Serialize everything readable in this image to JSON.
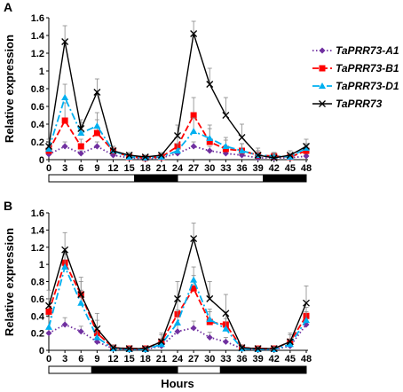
{
  "chart_data": [
    {
      "panel": "A",
      "type": "line",
      "ylabel": "Relative expression",
      "xlabel": "",
      "x": [
        0,
        3,
        6,
        9,
        12,
        15,
        18,
        21,
        24,
        27,
        30,
        33,
        36,
        39,
        42,
        45,
        48
      ],
      "ylim": [
        0,
        1.6
      ],
      "yticks": [
        "0",
        "0.2",
        "0.4",
        "0.6",
        "0.8",
        "1",
        "1.2",
        "1.4",
        "1.6"
      ],
      "xticks": [
        "0",
        "3",
        "6",
        "9",
        "12",
        "15",
        "18",
        "21",
        "24",
        "27",
        "30",
        "33",
        "36",
        "39",
        "42",
        "45",
        "48"
      ],
      "light_bar": [
        {
          "start": 0,
          "end": 16,
          "state": "light"
        },
        {
          "start": 16,
          "end": 24,
          "state": "dark"
        },
        {
          "start": 24,
          "end": 40,
          "state": "light"
        },
        {
          "start": 40,
          "end": 48,
          "state": "dark"
        }
      ],
      "series": [
        {
          "name": "TaPRR73-A1",
          "color": "#7030a0",
          "marker": "diamond",
          "dash": "dot",
          "values": [
            0.06,
            0.15,
            0.07,
            0.15,
            0.05,
            0.02,
            0.01,
            0.02,
            0.07,
            0.15,
            0.1,
            0.07,
            0.05,
            0.02,
            0.02,
            0.02,
            0.04
          ],
          "errors": [
            0.03,
            0.05,
            0.03,
            0.05,
            0.03,
            0.02,
            0.01,
            0.02,
            0.03,
            0.05,
            0.05,
            0.04,
            0.03,
            0.02,
            0.02,
            0.02,
            0.02
          ]
        },
        {
          "name": "TaPRR73-B1",
          "color": "#ff0000",
          "marker": "square",
          "dash": "dash",
          "values": [
            0.1,
            0.44,
            0.15,
            0.3,
            0.1,
            0.03,
            0.02,
            0.03,
            0.15,
            0.5,
            0.2,
            0.12,
            0.1,
            0.05,
            0.04,
            0.03,
            0.1
          ],
          "errors": [
            0.05,
            0.2,
            0.08,
            0.15,
            0.05,
            0.03,
            0.02,
            0.03,
            0.1,
            0.2,
            0.15,
            0.1,
            0.08,
            0.05,
            0.04,
            0.03,
            0.05
          ]
        },
        {
          "name": "TaPRR73-D1",
          "color": "#00b0f0",
          "marker": "triangle",
          "dash": "dashdot",
          "values": [
            0.12,
            0.7,
            0.3,
            0.38,
            0.1,
            0.03,
            0.02,
            0.03,
            0.1,
            0.32,
            0.24,
            0.15,
            0.1,
            0.05,
            0.04,
            0.03,
            0.13
          ],
          "errors": [
            0.05,
            0.15,
            0.12,
            0.15,
            0.05,
            0.03,
            0.02,
            0.03,
            0.08,
            0.15,
            0.15,
            0.1,
            0.08,
            0.05,
            0.04,
            0.03,
            0.05
          ]
        },
        {
          "name": "TaPRR73",
          "color": "#000000",
          "marker": "x",
          "dash": "solid",
          "values": [
            0.15,
            1.33,
            0.35,
            0.76,
            0.1,
            0.05,
            0.03,
            0.05,
            0.27,
            1.42,
            0.85,
            0.5,
            0.25,
            0.05,
            0.02,
            0.05,
            0.15
          ],
          "errors": [
            0.08,
            0.18,
            0.1,
            0.15,
            0.05,
            0.03,
            0.02,
            0.03,
            0.12,
            0.14,
            0.18,
            0.2,
            0.15,
            0.08,
            0.05,
            0.05,
            0.08
          ]
        }
      ]
    },
    {
      "panel": "B",
      "type": "line",
      "ylabel": "Relative expression",
      "xlabel": "Hours",
      "x": [
        0,
        3,
        6,
        9,
        12,
        15,
        18,
        21,
        24,
        27,
        30,
        33,
        36,
        39,
        42,
        45,
        48
      ],
      "ylim": [
        0,
        1.6
      ],
      "yticks": [
        "0",
        "0.2",
        "0.4",
        "0.6",
        "0.8",
        "1",
        "1.2",
        "1.4",
        "1.6"
      ],
      "xticks": [
        "0",
        "3",
        "6",
        "9",
        "12",
        "15",
        "18",
        "21",
        "24",
        "27",
        "30",
        "33",
        "36",
        "39",
        "42",
        "45",
        "48"
      ],
      "light_bar": [
        {
          "start": 0,
          "end": 8,
          "state": "light"
        },
        {
          "start": 8,
          "end": 24,
          "state": "dark"
        },
        {
          "start": 24,
          "end": 32,
          "state": "light"
        },
        {
          "start": 32,
          "end": 48,
          "state": "dark"
        }
      ],
      "series": [
        {
          "name": "TaPRR73-A1",
          "color": "#7030a0",
          "marker": "diamond",
          "dash": "dot",
          "values": [
            0.2,
            0.3,
            0.22,
            0.1,
            0.02,
            0.01,
            0.01,
            0.05,
            0.22,
            0.26,
            0.15,
            0.1,
            0.02,
            0.01,
            0.01,
            0.05,
            0.3
          ],
          "errors": [
            0.06,
            0.08,
            0.06,
            0.05,
            0.02,
            0.01,
            0.01,
            0.03,
            0.08,
            0.08,
            0.06,
            0.05,
            0.02,
            0.01,
            0.01,
            0.03,
            0.08
          ]
        },
        {
          "name": "TaPRR73-B1",
          "color": "#ff0000",
          "marker": "square",
          "dash": "dash",
          "values": [
            0.45,
            1.02,
            0.65,
            0.2,
            0.03,
            0.02,
            0.02,
            0.1,
            0.42,
            0.72,
            0.33,
            0.3,
            0.03,
            0.02,
            0.02,
            0.1,
            0.4
          ],
          "errors": [
            0.15,
            0.12,
            0.15,
            0.15,
            0.03,
            0.02,
            0.02,
            0.08,
            0.15,
            0.15,
            0.12,
            0.15,
            0.03,
            0.02,
            0.02,
            0.08,
            0.1
          ]
        },
        {
          "name": "TaPRR73-D1",
          "color": "#00b0f0",
          "marker": "triangle",
          "dash": "dashdot",
          "values": [
            0.27,
            0.97,
            0.55,
            0.15,
            0.02,
            0.01,
            0.01,
            0.07,
            0.32,
            0.82,
            0.36,
            0.25,
            0.02,
            0.01,
            0.01,
            0.07,
            0.35
          ],
          "errors": [
            0.12,
            0.15,
            0.15,
            0.12,
            0.02,
            0.01,
            0.01,
            0.06,
            0.15,
            0.15,
            0.12,
            0.12,
            0.02,
            0.01,
            0.01,
            0.06,
            0.1
          ]
        },
        {
          "name": "TaPRR73",
          "color": "#000000",
          "marker": "x",
          "dash": "solid",
          "values": [
            0.52,
            1.17,
            0.65,
            0.25,
            0.03,
            0.02,
            0.02,
            0.1,
            0.6,
            1.3,
            0.6,
            0.43,
            0.03,
            0.02,
            0.02,
            0.1,
            0.55
          ],
          "errors": [
            0.18,
            0.2,
            0.2,
            0.18,
            0.03,
            0.02,
            0.02,
            0.1,
            0.2,
            0.18,
            0.2,
            0.22,
            0.03,
            0.02,
            0.02,
            0.1,
            0.2
          ]
        }
      ]
    }
  ]
}
